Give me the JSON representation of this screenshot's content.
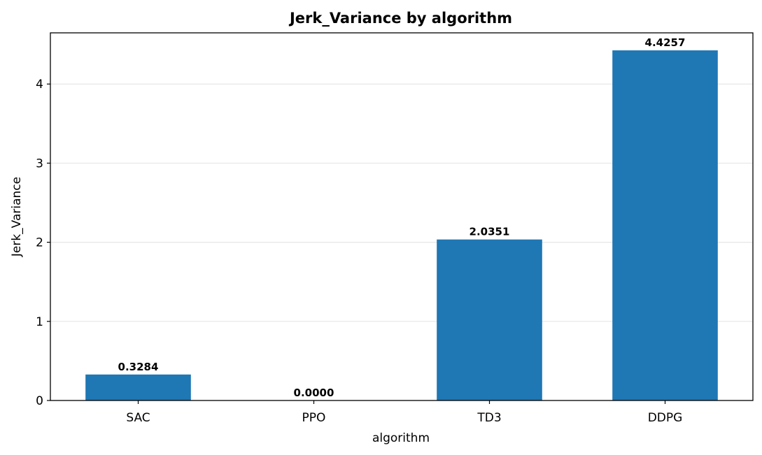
{
  "chart_data": {
    "type": "bar",
    "title": "Jerk_Variance by algorithm",
    "xlabel": "algorithm",
    "ylabel": "Jerk_Variance",
    "categories": [
      "SAC",
      "PPO",
      "TD3",
      "DDPG"
    ],
    "values": [
      0.3284,
      0.0,
      2.0351,
      4.4257
    ],
    "value_labels": [
      "0.3284",
      "0.0000",
      "2.0351",
      "4.4257"
    ],
    "ylim": [
      0,
      4.647
    ],
    "yticks": [
      0,
      1,
      2,
      3,
      4
    ],
    "grid": "y",
    "legend": "none",
    "bar_color": "#1f77b4",
    "grid_color": "#e6e6e6"
  }
}
